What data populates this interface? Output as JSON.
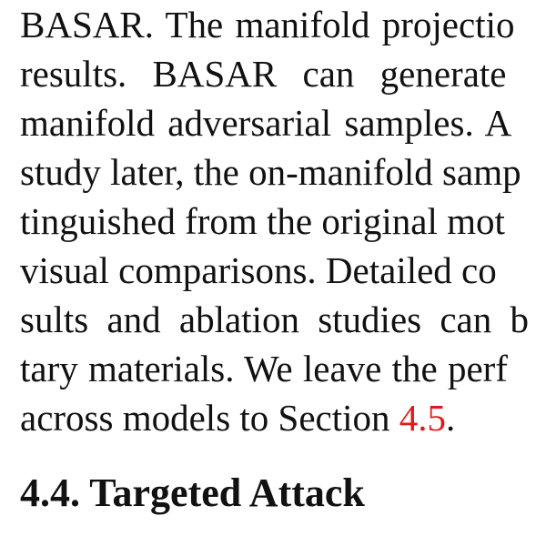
{
  "paragraph": {
    "lines": [
      "BASAR. The manifold projectio",
      "results.  BASAR can generate",
      "manifold adversarial samples.  A",
      "study later, the on-manifold samp",
      "tinguished from the original mot",
      "visual comparisons. Detailed co",
      "sults and ablation studies can b",
      "tary materials. We leave the perf"
    ],
    "last_line_prefix": "across models to Section ",
    "last_line_ref": "4.5",
    "last_line_suffix": "."
  },
  "section": {
    "heading": "4.4. Targeted Attack"
  },
  "colors": {
    "text": "#111111",
    "link": "#e41a1a",
    "background": "#ffffff"
  }
}
